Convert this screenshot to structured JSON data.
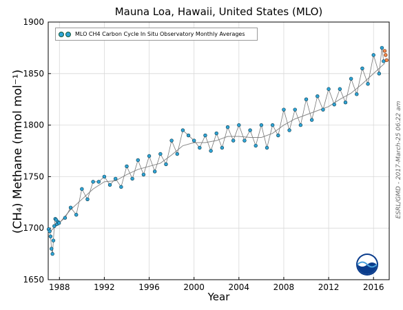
{
  "chart_data": {
    "type": "scatter",
    "title": "Mauna Loa, Hawaii, United States (MLO)",
    "xlabel": "Year",
    "ylabel": "(CH₄) Methane (nmol mol⁻¹)",
    "xlim": [
      1987.0,
      2017.4
    ],
    "ylim": [
      1650,
      1900
    ],
    "x_ticks": [
      1988,
      1992,
      1996,
      2000,
      2004,
      2008,
      2012,
      2016
    ],
    "y_ticks": [
      1650,
      1700,
      1750,
      1800,
      1850,
      1900
    ],
    "grid": true,
    "legend_position": "top-left",
    "legend_label": "MLO CH4 Carbon Cycle In Situ Observatory Monthly Averages",
    "credit": "ESRL/GMD - 2017-March-25 06:22 am",
    "colors": {
      "points": "#2fa4d6",
      "recent_points": "#f5894a",
      "trend": "#888888",
      "line": "#777777"
    },
    "series": [
      {
        "type": "monthly",
        "x": [
          1987.04,
          1987.13,
          1987.21,
          1987.29,
          1987.38,
          1987.46,
          1987.54,
          1987.63,
          1987.71,
          1987.79,
          1987.88,
          1987.96,
          1988.5,
          1989.0,
          1989.5,
          1990.0,
          1990.5,
          1991.0,
          1991.5,
          1992.0,
          1992.5,
          1993.0,
          1993.5,
          1994.0,
          1994.5,
          1995.0,
          1995.5,
          1996.0,
          1996.5,
          1997.0,
          1997.5,
          1998.0,
          1998.5,
          1999.0,
          1999.5,
          2000.0,
          2000.5,
          2001.0,
          2001.5,
          2002.0,
          2002.5,
          2003.0,
          2003.5,
          2004.0,
          2004.5,
          2005.0,
          2005.5,
          2006.0,
          2006.5,
          2007.0,
          2007.5,
          2008.0,
          2008.5,
          2009.0,
          2009.5,
          2010.0,
          2010.5,
          2011.0,
          2011.5,
          2012.0,
          2012.5,
          2013.0,
          2013.5,
          2014.0,
          2014.5,
          2015.0,
          2015.5,
          2016.0,
          2016.5,
          2016.75,
          2016.9
        ],
        "y": [
          1699,
          1697,
          1692,
          1680,
          1675,
          1688,
          1702,
          1709,
          1708,
          1704,
          1706,
          1705,
          1710,
          1720,
          1713,
          1738,
          1728,
          1745,
          1745,
          1750,
          1742,
          1748,
          1740,
          1760,
          1748,
          1766,
          1752,
          1770,
          1755,
          1772,
          1762,
          1785,
          1772,
          1795,
          1790,
          1785,
          1778,
          1790,
          1775,
          1792,
          1778,
          1798,
          1785,
          1800,
          1785,
          1795,
          1780,
          1800,
          1778,
          1800,
          1790,
          1815,
          1795,
          1815,
          1800,
          1825,
          1805,
          1828,
          1815,
          1835,
          1820,
          1835,
          1822,
          1845,
          1830,
          1855,
          1840,
          1868,
          1850,
          1875,
          1862
        ],
        "recent_x": [
          2017.0,
          2017.08,
          2017.17
        ],
        "recent_y": [
          1872,
          1868,
          1863
        ]
      },
      {
        "type": "trend",
        "x": [
          1987.0,
          1988.0,
          1989.0,
          1990.0,
          1991.0,
          1992.0,
          1993.0,
          1994.0,
          1995.0,
          1996.0,
          1997.0,
          1998.0,
          1999.0,
          2000.0,
          2001.0,
          2002.0,
          2003.0,
          2004.0,
          2005.0,
          2006.0,
          2007.0,
          2008.0,
          2009.0,
          2010.0,
          2011.0,
          2012.0,
          2013.0,
          2014.0,
          2015.0,
          2016.0,
          2017.0
        ],
        "y": [
          1695,
          1705,
          1718,
          1728,
          1738,
          1745,
          1746,
          1752,
          1757,
          1760,
          1763,
          1771,
          1780,
          1783,
          1783,
          1785,
          1789,
          1789,
          1788,
          1788,
          1792,
          1800,
          1806,
          1810,
          1814,
          1818,
          1825,
          1831,
          1840,
          1850,
          1860
        ]
      }
    ]
  }
}
